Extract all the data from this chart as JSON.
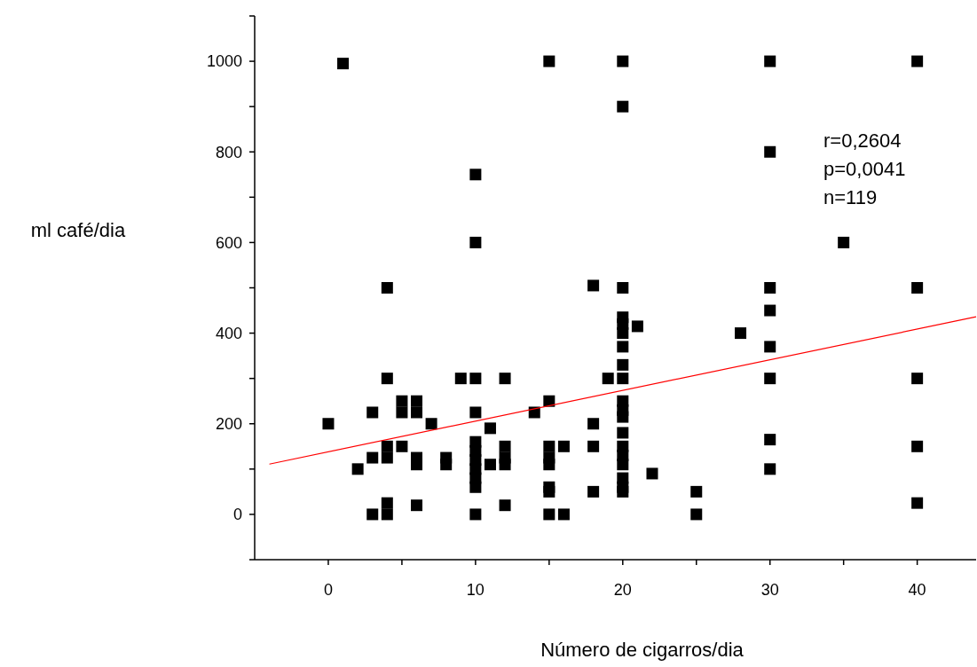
{
  "chart_data": {
    "type": "scatter",
    "xlabel": "Número de cigarros/dia",
    "ylabel": "ml café/dia",
    "xlim": [
      -5,
      44
    ],
    "ylim": [
      -100,
      1100
    ],
    "xticks": [
      0,
      {
        "value": 5,
        "label": null
      },
      10,
      {
        "value": 15,
        "label": null
      },
      20,
      {
        "value": 25,
        "label": null
      },
      30,
      {
        "value": 35,
        "label": null
      },
      40
    ],
    "yticks": [
      {
        "value": -100,
        "label": null
      },
      0,
      {
        "value": 100,
        "label": null
      },
      200,
      {
        "value": 300,
        "label": null
      },
      400,
      {
        "value": 500,
        "label": null
      },
      600,
      {
        "value": 700,
        "label": null
      },
      800,
      {
        "value": 900,
        "label": null
      },
      1000,
      {
        "value": 1100,
        "label": null
      }
    ],
    "annotations": [
      "r=0,2604",
      "p=0,0041",
      "n=119"
    ],
    "grid": false,
    "series": [
      {
        "color": "#000000",
        "marker": "square",
        "x": [
          0,
          1,
          2,
          3,
          3,
          3,
          4,
          4,
          4,
          4,
          4,
          4,
          5,
          5,
          5,
          6,
          6,
          6,
          6,
          6,
          7,
          8,
          8,
          9,
          10,
          10,
          10,
          10,
          10,
          10,
          10,
          10,
          10,
          10,
          10,
          11,
          11,
          12,
          12,
          12,
          12,
          12,
          14,
          15,
          15,
          15,
          15,
          15,
          15,
          15,
          15,
          16,
          16,
          18,
          18,
          18,
          18,
          19,
          20,
          20,
          20,
          20,
          20,
          20,
          20,
          20,
          20,
          20,
          20,
          20,
          20,
          20,
          20,
          20,
          20,
          20,
          20,
          21,
          22,
          25,
          25,
          28,
          30,
          30,
          30,
          30,
          30,
          30,
          30,
          30,
          35,
          40,
          40,
          40,
          40,
          40
        ],
        "values": [
          200,
          995,
          100,
          225,
          125,
          0,
          500,
          300,
          150,
          125,
          25,
          0,
          250,
          225,
          150,
          250,
          225,
          125,
          110,
          20,
          200,
          125,
          110,
          300,
          750,
          600,
          300,
          225,
          160,
          140,
          120,
          100,
          80,
          60,
          0,
          190,
          110,
          300,
          150,
          125,
          110,
          20,
          225,
          1000,
          250,
          150,
          125,
          110,
          60,
          50,
          0,
          150,
          0,
          505,
          200,
          150,
          50,
          300,
          1000,
          900,
          500,
          435,
          420,
          400,
          370,
          330,
          300,
          250,
          230,
          215,
          180,
          150,
          130,
          110,
          80,
          60,
          50,
          415,
          90,
          50,
          0,
          400,
          1000,
          800,
          500,
          450,
          370,
          300,
          165,
          100,
          600,
          1000,
          500,
          300,
          150,
          25
        ]
      },
      {
        "type": "line",
        "color": "#ff0000",
        "x": [
          -4,
          44
        ],
        "values": [
          111,
          436
        ],
        "marker": "none"
      }
    ]
  }
}
